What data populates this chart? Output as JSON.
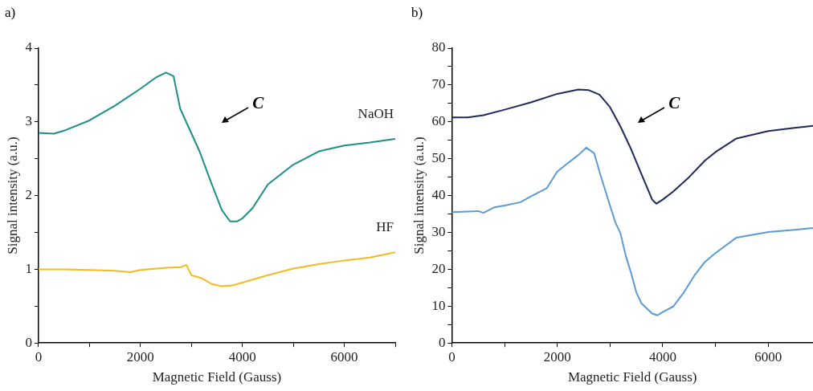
{
  "chart_data": [
    {
      "type": "line",
      "title": "a)",
      "xlabel": "Magnetic Field (Gauss)",
      "ylabel": "Signal intensity (a.u.)",
      "xlim": [
        0,
        7000
      ],
      "ylim": [
        0,
        4
      ],
      "xticks": [
        0,
        {
          "value": 1000,
          "label": null
        },
        2000,
        {
          "value": 3000,
          "label": null
        },
        4000,
        {
          "value": 5000,
          "label": null
        },
        6000,
        {
          "value": 7000,
          "label": null
        }
      ],
      "yticks": [
        0,
        {
          "value": 0.5,
          "label": null
        },
        1,
        {
          "value": 1.5,
          "label": null
        },
        2,
        {
          "value": 2.5,
          "label": null
        },
        3,
        {
          "value": 3.5,
          "label": null
        },
        4
      ],
      "grid": false,
      "legend": false,
      "marker": "none",
      "line_style": "solid",
      "annotations": [
        "C"
      ],
      "series": [
        {
          "name": "NaOH",
          "color": "#1a9088",
          "x": [
            0,
            300,
            500,
            1000,
            1500,
            2000,
            2300,
            2500,
            2650,
            2780,
            3160,
            3380,
            3600,
            3760,
            3900,
            4000,
            4200,
            4500,
            5000,
            5500,
            6000,
            6500,
            7000
          ],
          "values": [
            2.85,
            2.84,
            2.88,
            3.02,
            3.22,
            3.45,
            3.6,
            3.67,
            3.62,
            3.18,
            2.6,
            2.19,
            1.8,
            1.65,
            1.65,
            1.69,
            1.83,
            2.15,
            2.42,
            2.6,
            2.68,
            2.72,
            2.77
          ]
        },
        {
          "name": "HF",
          "color": "#f5b921",
          "x": [
            0,
            500,
            1000,
            1500,
            1800,
            2000,
            2500,
            2800,
            2900,
            3000,
            3200,
            3400,
            3600,
            3800,
            4000,
            4500,
            5000,
            5500,
            6000,
            6500,
            7000
          ],
          "values": [
            1.0,
            1.0,
            0.99,
            0.98,
            0.96,
            0.99,
            1.02,
            1.03,
            1.06,
            0.92,
            0.88,
            0.8,
            0.77,
            0.78,
            0.82,
            0.92,
            1.01,
            1.07,
            1.12,
            1.16,
            1.23
          ]
        }
      ]
    },
    {
      "type": "line",
      "title": "b)",
      "xlabel": "Magnetic Field (Gauss)",
      "ylabel": "Signal intensity (a.u.)",
      "xlim": [
        0,
        6850
      ],
      "ylim": [
        0,
        80
      ],
      "xticks": [
        0,
        {
          "value": 1000,
          "label": null
        },
        2000,
        {
          "value": 3000,
          "label": null
        },
        4000,
        {
          "value": 5000,
          "label": null
        },
        6000
      ],
      "yticks": [
        0,
        {
          "value": 5,
          "label": null
        },
        10,
        {
          "value": 15,
          "label": null
        },
        20,
        {
          "value": 25,
          "label": null
        },
        30,
        {
          "value": 35,
          "label": null
        },
        40,
        {
          "value": 45,
          "label": null
        },
        50,
        {
          "value": 55,
          "label": null
        },
        60,
        {
          "value": 65,
          "label": null
        },
        70,
        {
          "value": 75,
          "label": null
        },
        80
      ],
      "grid": false,
      "legend": false,
      "marker": "none",
      "line_style": "solid",
      "annotations": [
        "C"
      ],
      "series": [
        {
          "color": "#1f2a5c",
          "x": [
            0,
            300,
            600,
            1000,
            1500,
            2000,
            2400,
            2600,
            2800,
            3000,
            3200,
            3400,
            3600,
            3800,
            3880,
            4000,
            4200,
            4500,
            4800,
            5000,
            5400,
            6000,
            6500,
            6850
          ],
          "values": [
            61.2,
            61.2,
            61.8,
            63.3,
            65.3,
            67.6,
            68.8,
            68.6,
            67.4,
            64,
            58.7,
            52.6,
            45.7,
            38.9,
            37.8,
            38.9,
            41.1,
            45,
            49.5,
            51.8,
            55.5,
            57.5,
            58.4,
            58.9
          ]
        },
        {
          "color": "#5b9bd5",
          "x": [
            0,
            500,
            600,
            800,
            1000,
            1300,
            1500,
            1800,
            2000,
            2200,
            2400,
            2550,
            2700,
            2800,
            3000,
            3100,
            3200,
            3300,
            3400,
            3500,
            3600,
            3800,
            3900,
            4000,
            4200,
            4400,
            4600,
            4800,
            5000,
            5400,
            6000,
            6500,
            6850
          ],
          "values": [
            35.5,
            35.8,
            35.3,
            36.8,
            37.3,
            38.2,
            39.8,
            42,
            46.5,
            48.8,
            51,
            53,
            51.5,
            46.5,
            37.3,
            32.8,
            29.7,
            23.6,
            19,
            13.7,
            10.7,
            8,
            7.5,
            8.4,
            9.9,
            13.7,
            18.3,
            22,
            24.4,
            28.6,
            30.1,
            30.7,
            31.2
          ]
        }
      ]
    }
  ]
}
